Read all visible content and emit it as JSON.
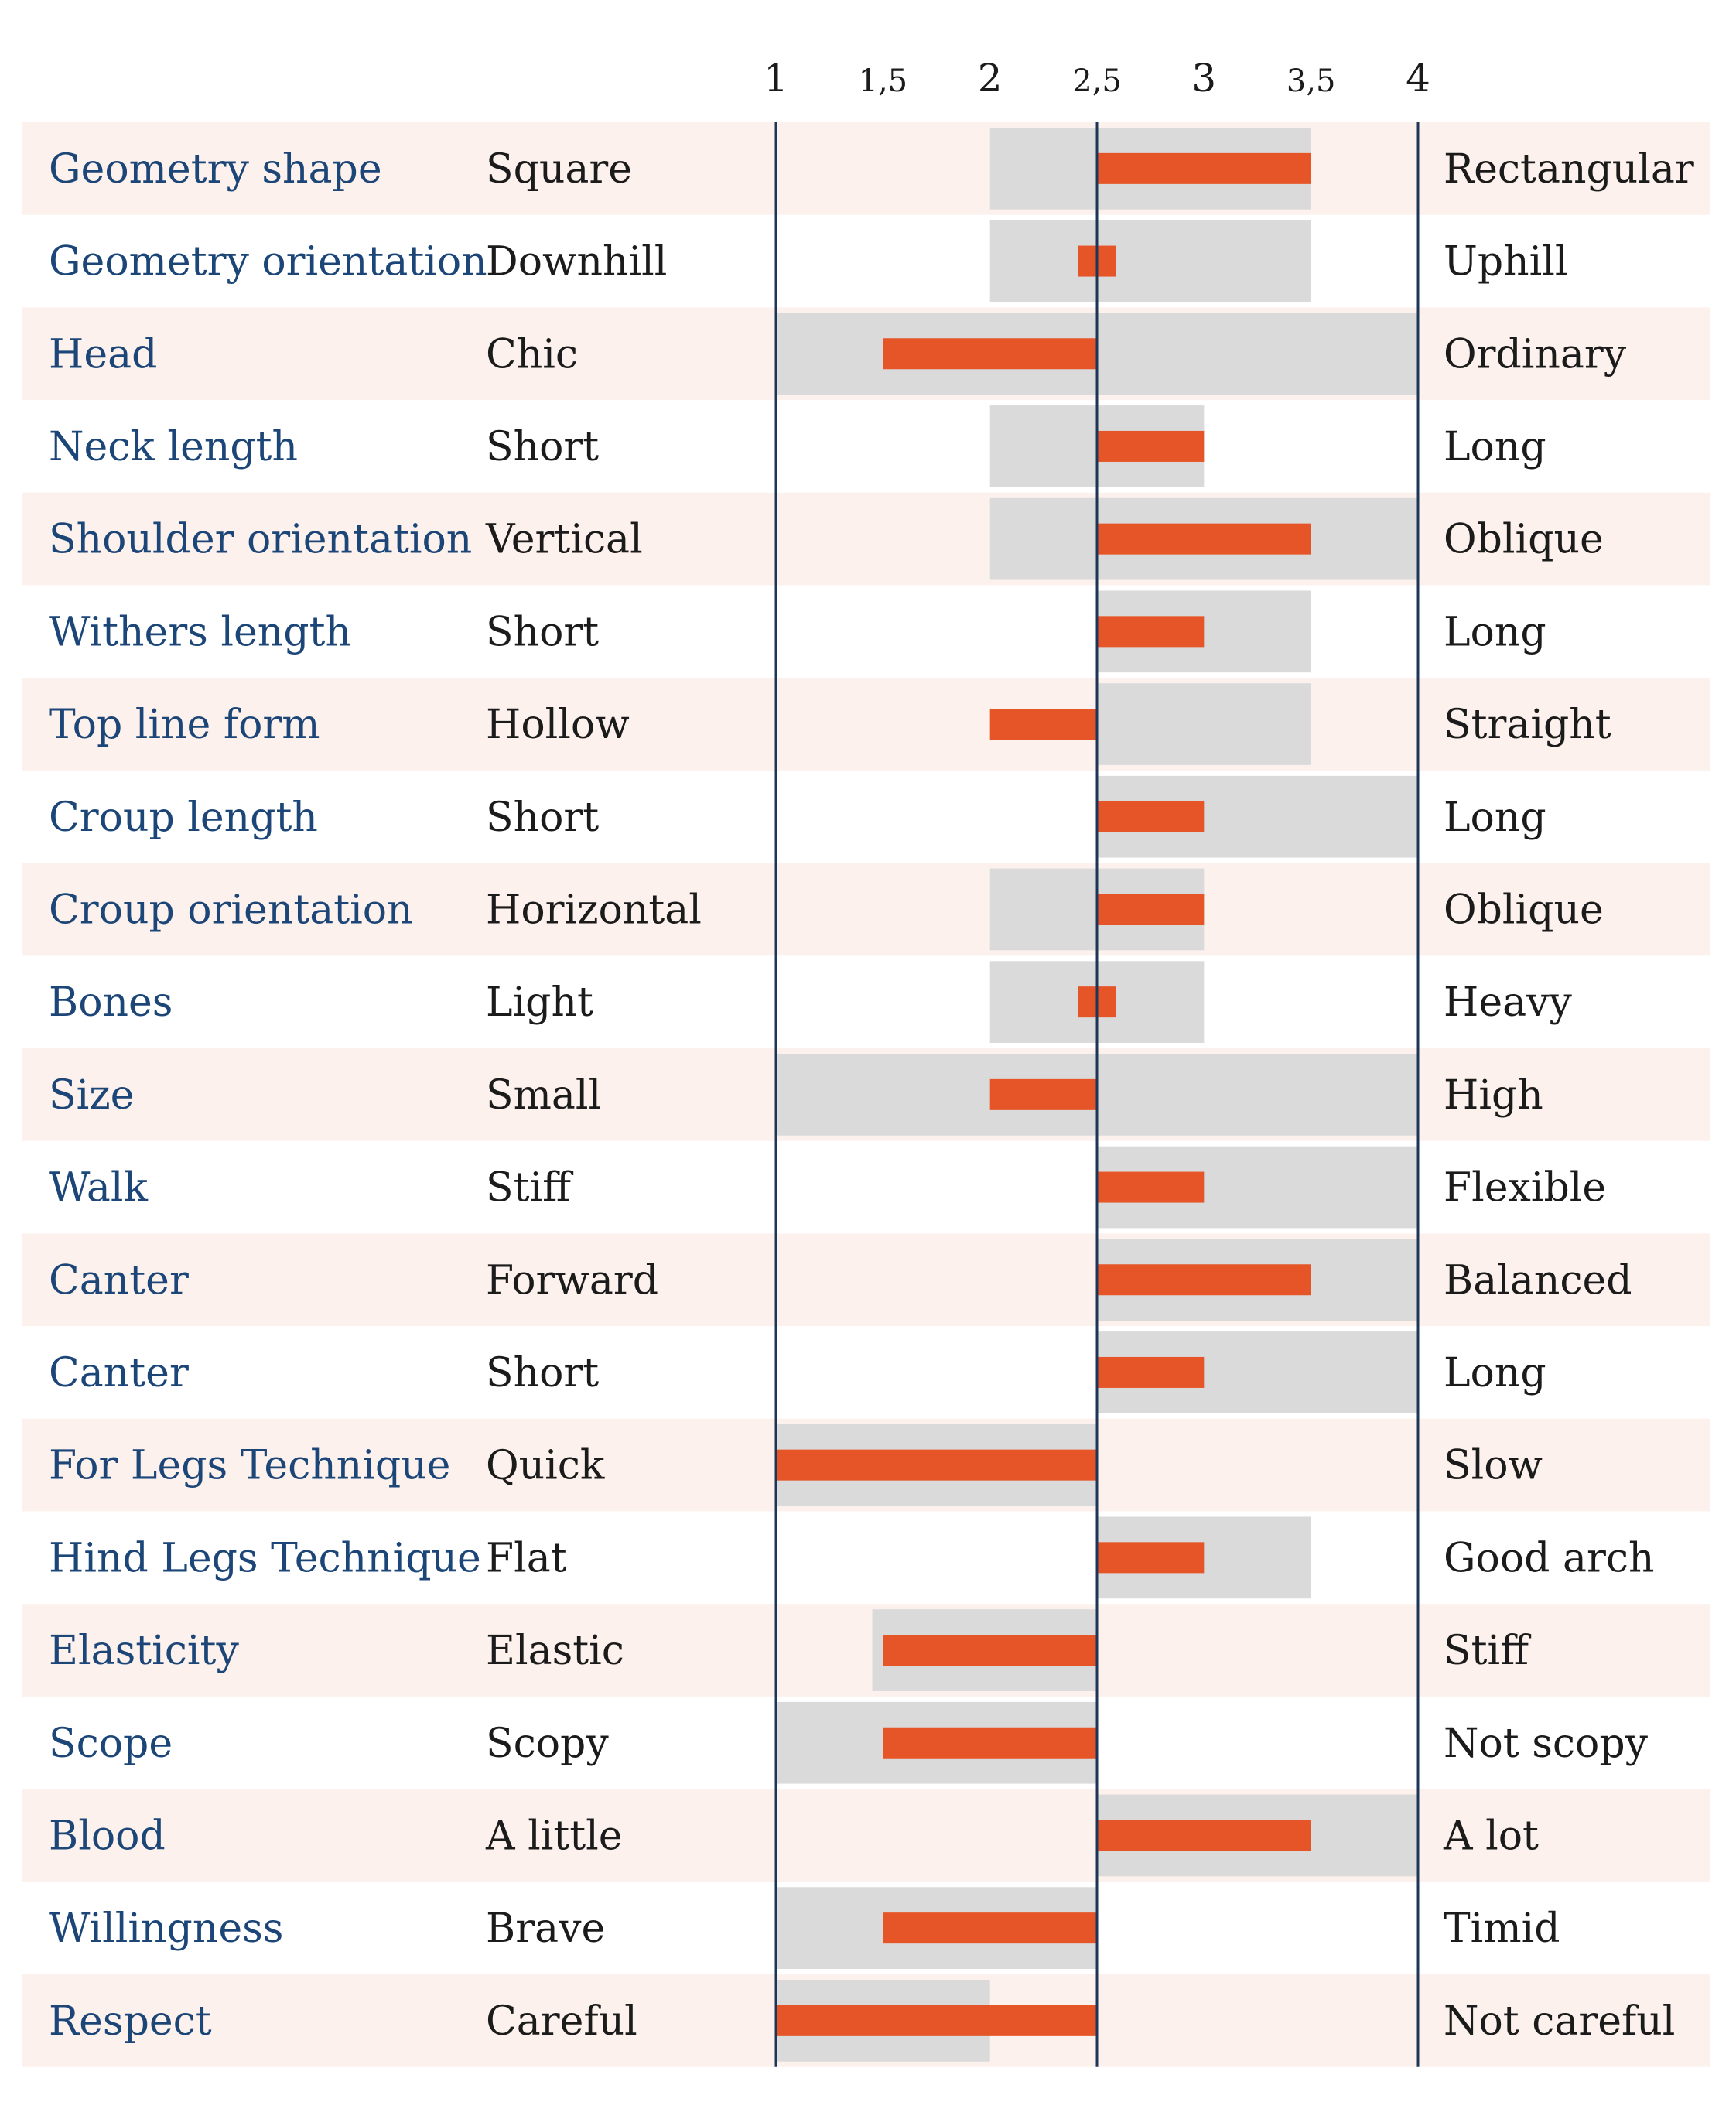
{
  "chart_data": {
    "type": "bar",
    "title": "",
    "xlim": [
      1,
      4
    ],
    "x_ticks": [
      "1",
      "1,5",
      "2",
      "2,5",
      "3",
      "3,5",
      "4"
    ],
    "x_tick_values": [
      1,
      1.5,
      2,
      2.5,
      3,
      3.5,
      4
    ],
    "baseline": 2.5,
    "grid": false,
    "colors": {
      "bar": "#e65527",
      "range": "#dadada",
      "row_alt": "#fcf1ec",
      "axis": "#1d3557",
      "trait_text": "#1d4678",
      "pole_text": "#1b1b1b"
    },
    "rows": [
      {
        "trait": "Geometry shape",
        "low": "Square",
        "high": "Rectangular",
        "value": 3.5,
        "range": [
          2,
          3.5
        ]
      },
      {
        "trait": "Geometry orientation",
        "low": "Downhill",
        "high": "Uphill",
        "value": 2.6,
        "range": [
          2,
          3.5
        ]
      },
      {
        "trait": "Head",
        "low": "Chic",
        "high": "Ordinary",
        "value": 1.5,
        "range": [
          1,
          4
        ]
      },
      {
        "trait": "Neck length",
        "low": "Short",
        "high": "Long",
        "value": 3,
        "range": [
          2,
          3
        ]
      },
      {
        "trait": "Shoulder orientation",
        "low": "Vertical",
        "high": "Oblique",
        "value": 3.5,
        "range": [
          2,
          4
        ]
      },
      {
        "trait": "Withers length",
        "low": "Short",
        "high": "Long",
        "value": 3,
        "range": [
          2.5,
          3.5
        ]
      },
      {
        "trait": "Top line form",
        "low": "Hollow",
        "high": "Straight",
        "value": 2,
        "range": [
          2.5,
          3.5
        ]
      },
      {
        "trait": "Croup length",
        "low": "Short",
        "high": "Long",
        "value": 3,
        "range": [
          2.5,
          4
        ]
      },
      {
        "trait": "Croup orientation",
        "low": "Horizontal",
        "high": "Oblique",
        "value": 3,
        "range": [
          2,
          3
        ]
      },
      {
        "trait": "Bones",
        "low": "Light",
        "high": "Heavy",
        "value": 2.6,
        "range": [
          2,
          3
        ]
      },
      {
        "trait": "Size",
        "low": "Small",
        "high": "High",
        "value": 2,
        "range": [
          1,
          4
        ]
      },
      {
        "trait": "Walk",
        "low": "Stiff",
        "high": "Flexible",
        "value": 3,
        "range": [
          2.5,
          4
        ]
      },
      {
        "trait": "Canter",
        "low": "Forward",
        "high": "Balanced",
        "value": 3.5,
        "range": [
          2.5,
          4
        ]
      },
      {
        "trait": "Canter",
        "low": "Short",
        "high": "Long",
        "value": 3,
        "range": [
          2.5,
          4
        ]
      },
      {
        "trait": "For Legs Technique",
        "low": "Quick",
        "high": "Slow",
        "value": 1,
        "range": [
          1,
          2.5
        ]
      },
      {
        "trait": "Hind Legs Technique",
        "low": "Flat",
        "high": "Good arch",
        "value": 3,
        "range": [
          2.5,
          3.5
        ]
      },
      {
        "trait": "Elasticity",
        "low": "Elastic",
        "high": "Stiff",
        "value": 1.5,
        "range": [
          1.45,
          2.5
        ]
      },
      {
        "trait": "Scope",
        "low": "Scopy",
        "high": "Not scopy",
        "value": 1.5,
        "range": [
          1,
          2.5
        ]
      },
      {
        "trait": "Blood",
        "low": "A little",
        "high": "A lot",
        "value": 3.5,
        "range": [
          2.5,
          4
        ]
      },
      {
        "trait": "Willingness",
        "low": "Brave",
        "high": "Timid",
        "value": 1.5,
        "range": [
          1,
          2.5
        ]
      },
      {
        "trait": "Respect",
        "low": "Careful",
        "high": "Not careful",
        "value": 1,
        "range": [
          1,
          2
        ]
      }
    ]
  }
}
